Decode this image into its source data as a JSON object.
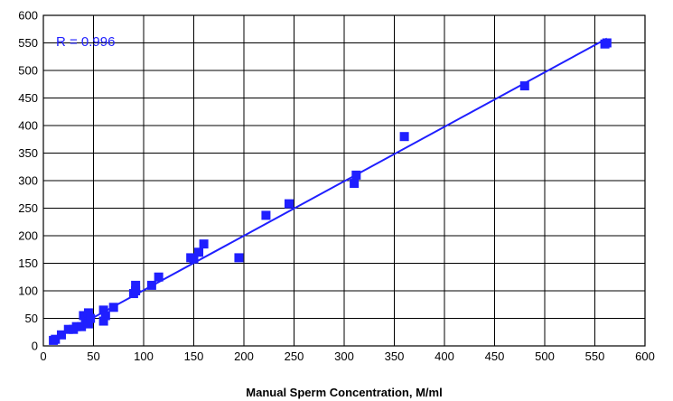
{
  "chart_data": {
    "type": "scatter",
    "title": "",
    "xlabel": "Manual Sperm Concentration, M/ml",
    "ylabel": "",
    "xlim": [
      0,
      600
    ],
    "ylim": [
      0,
      600
    ],
    "x_ticks": [
      0,
      50,
      100,
      150,
      200,
      250,
      300,
      350,
      400,
      450,
      500,
      550,
      600
    ],
    "y_ticks": [
      0,
      50,
      100,
      150,
      200,
      250,
      300,
      350,
      400,
      450,
      500,
      550,
      600
    ],
    "grid": true,
    "legend": "none",
    "annotation": "R = 0.996",
    "colors": {
      "points": "#1f1fff",
      "trendline": "#1f1fff",
      "grid": "#000000",
      "annotation_text": "#2020ff"
    },
    "series": [
      {
        "marker": "square",
        "x": [
          10,
          12,
          18,
          25,
          30,
          33,
          38,
          40,
          42,
          45,
          45,
          47,
          60,
          60,
          62,
          70,
          90,
          92,
          92,
          108,
          115,
          147,
          150,
          155,
          160,
          195,
          222,
          245,
          310,
          312,
          360,
          480,
          560,
          562
        ],
        "y": [
          10,
          12,
          20,
          30,
          30,
          35,
          35,
          55,
          50,
          60,
          40,
          50,
          45,
          65,
          55,
          70,
          95,
          110,
          100,
          110,
          125,
          160,
          158,
          170,
          185,
          160,
          237,
          258,
          295,
          310,
          380,
          472,
          548,
          550
        ]
      }
    ],
    "trendline": {
      "x": [
        10,
        562
      ],
      "y": [
        12,
        558
      ]
    }
  }
}
